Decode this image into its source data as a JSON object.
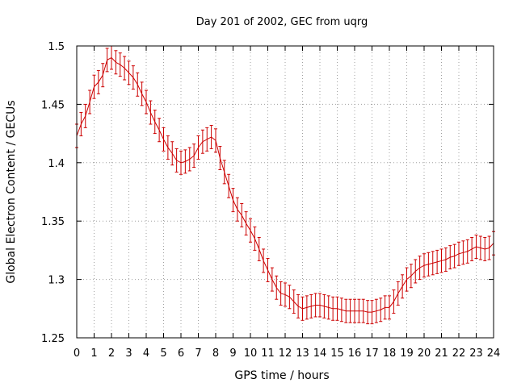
{
  "chart_data": {
    "type": "line",
    "title": "Day 201 of 2002, GEC from uqrg",
    "xlabel": "GPS time / hours",
    "ylabel": "Global Electron Content / GECUs",
    "xlim": [
      0,
      24
    ],
    "ylim": [
      1.25,
      1.5
    ],
    "xticks": [
      0,
      1,
      2,
      3,
      4,
      5,
      6,
      7,
      8,
      9,
      10,
      11,
      12,
      13,
      14,
      15,
      16,
      17,
      18,
      19,
      20,
      21,
      22,
      23,
      24
    ],
    "yticks": [
      1.25,
      1.3,
      1.35,
      1.4,
      1.45,
      1.5
    ],
    "ytick_labels": [
      "1.25",
      "1.3",
      "1.35",
      "1.4",
      "1.45",
      "1.5"
    ],
    "grid": true,
    "legend": "none",
    "color": "#cc0000",
    "error_bar": 0.01,
    "series": [
      {
        "x": [
          0,
          0.25,
          0.5,
          0.75,
          1,
          1.25,
          1.5,
          1.75,
          2,
          2.25,
          2.5,
          2.75,
          3,
          3.25,
          3.5,
          3.75,
          4,
          4.25,
          4.5,
          4.75,
          5,
          5.25,
          5.5,
          5.75,
          6,
          6.25,
          6.5,
          6.75,
          7,
          7.25,
          7.5,
          7.75,
          8,
          8.25,
          8.5,
          8.75,
          9,
          9.25,
          9.5,
          9.75,
          10,
          10.25,
          10.5,
          10.75,
          11,
          11.25,
          11.5,
          11.75,
          12,
          12.25,
          12.5,
          12.75,
          13,
          13.25,
          13.5,
          13.75,
          14,
          14.25,
          14.5,
          14.75,
          15,
          15.25,
          15.5,
          15.75,
          16,
          16.25,
          16.5,
          16.75,
          17,
          17.25,
          17.5,
          17.75,
          18,
          18.25,
          18.5,
          18.75,
          19,
          19.25,
          19.5,
          19.75,
          20,
          20.25,
          20.5,
          20.75,
          21,
          21.25,
          21.5,
          21.75,
          22,
          22.25,
          22.5,
          22.75,
          23,
          23.25,
          23.5,
          23.75,
          24
        ],
        "y": [
          1.423,
          1.433,
          1.44,
          1.452,
          1.465,
          1.469,
          1.475,
          1.488,
          1.49,
          1.486,
          1.484,
          1.481,
          1.477,
          1.473,
          1.467,
          1.459,
          1.452,
          1.443,
          1.435,
          1.428,
          1.42,
          1.413,
          1.408,
          1.402,
          1.4,
          1.401,
          1.403,
          1.406,
          1.413,
          1.418,
          1.42,
          1.422,
          1.419,
          1.404,
          1.392,
          1.38,
          1.368,
          1.36,
          1.355,
          1.348,
          1.342,
          1.335,
          1.326,
          1.316,
          1.308,
          1.3,
          1.293,
          1.288,
          1.287,
          1.285,
          1.281,
          1.277,
          1.275,
          1.276,
          1.277,
          1.278,
          1.278,
          1.277,
          1.276,
          1.275,
          1.275,
          1.274,
          1.273,
          1.273,
          1.273,
          1.273,
          1.273,
          1.272,
          1.272,
          1.273,
          1.274,
          1.276,
          1.276,
          1.281,
          1.288,
          1.294,
          1.3,
          1.303,
          1.307,
          1.31,
          1.312,
          1.313,
          1.314,
          1.315,
          1.316,
          1.317,
          1.319,
          1.32,
          1.322,
          1.323,
          1.324,
          1.326,
          1.328,
          1.327,
          1.326,
          1.327,
          1.331
        ]
      }
    ]
  }
}
